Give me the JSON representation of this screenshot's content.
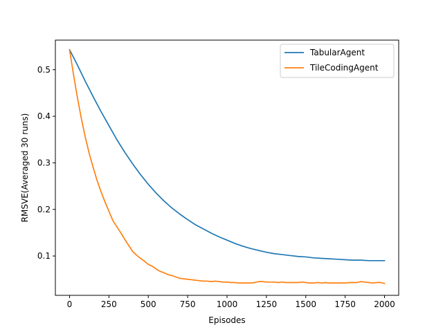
{
  "chart_data": {
    "type": "line",
    "title": "",
    "xlabel": "Episodes",
    "ylabel": "RMSVE(Averaged 30 runs)",
    "xlim": [
      -90,
      2090
    ],
    "ylim": [
      0.0155,
      0.5635
    ],
    "xticks": [
      0,
      250,
      500,
      750,
      1000,
      1250,
      1500,
      1750,
      2000
    ],
    "yticks": [
      0.1,
      0.2,
      0.3,
      0.4,
      0.5
    ],
    "xtick_labels": [
      "0",
      "250",
      "500",
      "750",
      "1000",
      "1250",
      "1500",
      "1750",
      "2000"
    ],
    "ytick_labels": [
      "0.1",
      "0.2",
      "0.3",
      "0.4",
      "0.5"
    ],
    "grid": false,
    "legend_position": "top-right",
    "series": [
      {
        "name": "TabularAgent",
        "color": "#1f77b4",
        "x": [
          0,
          50,
          100,
          150,
          200,
          250,
          300,
          350,
          400,
          450,
          500,
          550,
          600,
          650,
          700,
          750,
          800,
          850,
          900,
          950,
          1000,
          1050,
          1100,
          1150,
          1200,
          1250,
          1300,
          1350,
          1400,
          1450,
          1500,
          1550,
          1600,
          1650,
          1700,
          1750,
          1800,
          1850,
          1900,
          1950,
          2000
        ],
        "values": [
          0.543,
          0.51,
          0.475,
          0.442,
          0.41,
          0.38,
          0.35,
          0.323,
          0.298,
          0.275,
          0.254,
          0.235,
          0.218,
          0.203,
          0.19,
          0.178,
          0.167,
          0.158,
          0.149,
          0.141,
          0.134,
          0.127,
          0.121,
          0.116,
          0.112,
          0.108,
          0.105,
          0.103,
          0.101,
          0.099,
          0.098,
          0.096,
          0.095,
          0.094,
          0.093,
          0.092,
          0.091,
          0.091,
          0.09,
          0.09,
          0.09
        ]
      },
      {
        "name": "TileCodingAgent",
        "color": "#ff7f0e",
        "x": [
          0,
          25,
          50,
          75,
          100,
          125,
          150,
          175,
          200,
          225,
          250,
          275,
          300,
          325,
          350,
          375,
          400,
          425,
          450,
          475,
          500,
          525,
          550,
          575,
          600,
          625,
          650,
          675,
          700,
          725,
          750,
          775,
          800,
          825,
          850,
          875,
          900,
          925,
          950,
          975,
          1000,
          1025,
          1050,
          1075,
          1100,
          1125,
          1150,
          1175,
          1200,
          1225,
          1250,
          1275,
          1300,
          1325,
          1350,
          1375,
          1400,
          1425,
          1450,
          1475,
          1500,
          1525,
          1550,
          1575,
          1600,
          1625,
          1650,
          1675,
          1700,
          1725,
          1750,
          1775,
          1800,
          1825,
          1850,
          1875,
          1900,
          1925,
          1950,
          1975,
          2000
        ],
        "values": [
          0.543,
          0.49,
          0.44,
          0.395,
          0.355,
          0.32,
          0.29,
          0.262,
          0.238,
          0.216,
          0.196,
          0.176,
          0.163,
          0.15,
          0.136,
          0.123,
          0.11,
          0.102,
          0.095,
          0.089,
          0.082,
          0.078,
          0.072,
          0.067,
          0.064,
          0.06,
          0.058,
          0.055,
          0.052,
          0.051,
          0.05,
          0.049,
          0.048,
          0.047,
          0.046,
          0.046,
          0.045,
          0.046,
          0.045,
          0.044,
          0.044,
          0.043,
          0.043,
          0.042,
          0.042,
          0.042,
          0.042,
          0.043,
          0.045,
          0.045,
          0.044,
          0.044,
          0.044,
          0.043,
          0.044,
          0.043,
          0.043,
          0.043,
          0.043,
          0.044,
          0.043,
          0.042,
          0.042,
          0.043,
          0.042,
          0.043,
          0.042,
          0.042,
          0.042,
          0.042,
          0.042,
          0.043,
          0.043,
          0.043,
          0.045,
          0.044,
          0.043,
          0.042,
          0.043,
          0.043,
          0.041
        ]
      }
    ]
  }
}
